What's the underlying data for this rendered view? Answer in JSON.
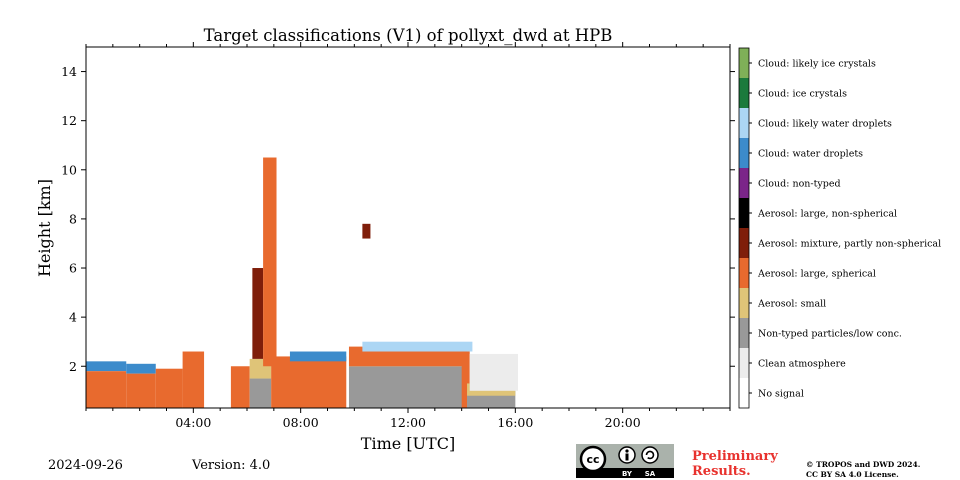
{
  "chart_data": {
    "type": "heatmap",
    "title": "Target classifications (V1) of pollyxt_dwd at HPB",
    "xlabel": "Time [UTC]",
    "ylabel": "Height [km]",
    "xlim": [
      0,
      24
    ],
    "ylim": [
      0.3,
      15
    ],
    "x_ticks": [
      4,
      8,
      12,
      16,
      20
    ],
    "x_tick_labels": [
      "04:00",
      "08:00",
      "12:00",
      "16:00",
      "20:00"
    ],
    "y_ticks": [
      2,
      4,
      6,
      8,
      10,
      12,
      14
    ],
    "y_tick_labels": [
      "2",
      "4",
      "6",
      "8",
      "10",
      "12",
      "14"
    ],
    "colorbar": [
      {
        "label": "Cloud: likely ice crystals",
        "color": "#7fb058"
      },
      {
        "label": "Cloud: ice crystals",
        "color": "#1b7a3c"
      },
      {
        "label": "Cloud: likely water droplets",
        "color": "#acd6f4"
      },
      {
        "label": "Cloud: water droplets",
        "color": "#3c8bcb"
      },
      {
        "label": "Cloud: non-typed",
        "color": "#7b2589"
      },
      {
        "label": "Aerosol: large, non-spherical",
        "color": "#000000"
      },
      {
        "label": "Aerosol: mixture, partly non-spherical",
        "color": "#7f1e0a"
      },
      {
        "label": "Aerosol: large, spherical",
        "color": "#e86a2e"
      },
      {
        "label": "Aerosol: small",
        "color": "#dfc478"
      },
      {
        "label": "Non-typed particles/low conc.",
        "color": "#999999"
      },
      {
        "label": "Clean atmosphere",
        "color": "#ececec"
      },
      {
        "label": "No signal",
        "color": "#ffffff"
      }
    ],
    "regions": [
      {
        "class": "Cloud: water droplets",
        "t": [
          0.0,
          1.5
        ],
        "h": [
          1.8,
          2.2
        ]
      },
      {
        "class": "Aerosol: large, spherical",
        "t": [
          0.0,
          1.5
        ],
        "h": [
          0.3,
          1.8
        ]
      },
      {
        "class": "Cloud: water droplets",
        "t": [
          1.5,
          2.6
        ],
        "h": [
          1.7,
          2.1
        ]
      },
      {
        "class": "Aerosol: large, spherical",
        "t": [
          1.5,
          2.6
        ],
        "h": [
          0.3,
          1.7
        ]
      },
      {
        "class": "Aerosol: large, spherical",
        "t": [
          2.6,
          3.6
        ],
        "h": [
          0.3,
          1.9
        ]
      },
      {
        "class": "Aerosol: large, spherical",
        "t": [
          3.6,
          4.4
        ],
        "h": [
          0.3,
          2.6
        ]
      },
      {
        "class": "Aerosol: large, spherical",
        "t": [
          5.4,
          6.1
        ],
        "h": [
          0.3,
          2.0
        ]
      },
      {
        "class": "Non-typed particles/low conc.",
        "t": [
          6.1,
          6.9
        ],
        "h": [
          0.3,
          1.5
        ]
      },
      {
        "class": "Aerosol: small",
        "t": [
          6.1,
          6.9
        ],
        "h": [
          1.5,
          2.3
        ]
      },
      {
        "class": "Aerosol: mixture, partly non-spherical",
        "t": [
          6.2,
          6.6
        ],
        "h": [
          2.3,
          6.0
        ]
      },
      {
        "class": "Aerosol: large, spherical",
        "t": [
          6.6,
          7.1
        ],
        "h": [
          2.0,
          10.5
        ]
      },
      {
        "class": "Aerosol: large, spherical",
        "t": [
          6.9,
          9.7
        ],
        "h": [
          0.3,
          2.4
        ]
      },
      {
        "class": "Cloud: water droplets",
        "t": [
          7.6,
          9.7
        ],
        "h": [
          2.2,
          2.6
        ]
      },
      {
        "class": "Non-typed particles/low conc.",
        "t": [
          9.8,
          14.2
        ],
        "h": [
          0.3,
          2.0
        ]
      },
      {
        "class": "Aerosol: small",
        "t": [
          9.8,
          14.2
        ],
        "h": [
          2.0,
          2.4
        ]
      },
      {
        "class": "Aerosol: large, spherical",
        "t": [
          9.8,
          14.2
        ],
        "h": [
          2.0,
          2.8
        ]
      },
      {
        "class": "Cloud: likely water droplets",
        "t": [
          10.3,
          14.4
        ],
        "h": [
          2.6,
          3.0
        ]
      },
      {
        "class": "Aerosol: mixture, partly non-spherical",
        "t": [
          10.3,
          10.6
        ],
        "h": [
          7.2,
          7.8
        ]
      },
      {
        "class": "Aerosol: large, spherical",
        "t": [
          14.0,
          14.3
        ],
        "h": [
          0.3,
          2.6
        ]
      },
      {
        "class": "Non-typed particles/low conc.",
        "t": [
          14.2,
          16.0
        ],
        "h": [
          0.3,
          1.0
        ]
      },
      {
        "class": "Aerosol: small",
        "t": [
          14.2,
          16.0
        ],
        "h": [
          0.8,
          1.3
        ]
      },
      {
        "class": "Clean atmosphere",
        "t": [
          14.3,
          16.1
        ],
        "h": [
          1.0,
          2.5
        ]
      }
    ]
  },
  "footer": {
    "date": "2024-09-26",
    "version": "Version: 4.0",
    "preliminary_line1": "Preliminary",
    "preliminary_line2": "Results.",
    "copyright_line1": "© TROPOS and DWD 2024.",
    "copyright_line2": "CC BY SA 4.0 License.",
    "license_badge_by": "BY",
    "license_badge_sa": "SA",
    "license_badge_cc": "cc"
  }
}
